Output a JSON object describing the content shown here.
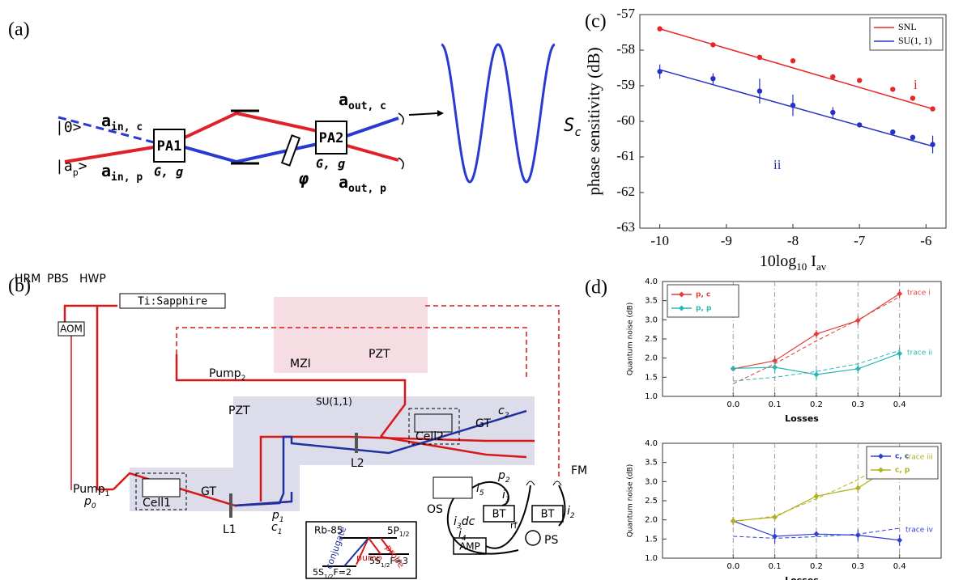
{
  "panel_labels": [
    "(a)",
    "(b)",
    "(c)",
    "(d)"
  ],
  "diagram_a": {
    "vacuum": "|0>",
    "probe": [
      {
        "text": "|a"
      },
      {
        "text": "p",
        "sub": true
      },
      {
        "text": ">"
      }
    ],
    "a_in_c": [
      {
        "text": "a"
      },
      {
        "text": "in, c",
        "sub": true
      }
    ],
    "a_in_p": [
      {
        "text": "a"
      },
      {
        "text": "in, p",
        "sub": true
      }
    ],
    "pa1": "PA1",
    "pa1_gain": "G, g",
    "pa2": "PA2",
    "pa2_gain": "G, g",
    "phase": "φ",
    "a_out_c": [
      {
        "text": "a"
      },
      {
        "text": "out, c",
        "sub": true
      }
    ],
    "a_out_p": [
      {
        "text": "a"
      },
      {
        "text": "out, p",
        "sub": true
      }
    ],
    "signal": [
      {
        "text": "S"
      },
      {
        "text": "c",
        "sub": true
      }
    ]
  },
  "diagram_b": {
    "hrm": "HRM",
    "pbs": "PBS",
    "hwp": "HWP",
    "laser": "Ti:Sapphire",
    "aom": "AOM",
    "mzi": "MZI",
    "pzt_top": "PZT",
    "pump2": [
      {
        "text": "Pump"
      },
      {
        "text": "2",
        "sub": true
      }
    ],
    "pzt": "PZT",
    "su11": "SU(1,1)",
    "gt2": "GT",
    "c2": [
      {
        "text": "c"
      },
      {
        "text": "2",
        "sub": true
      }
    ],
    "p2": [
      {
        "text": "p"
      },
      {
        "text": "2",
        "sub": true
      }
    ],
    "cell2": "Cell2",
    "l2": "L2",
    "fm": "FM",
    "pump1": [
      {
        "text": "Pump"
      },
      {
        "text": "1",
        "sub": true
      }
    ],
    "gt1": "GT",
    "p1": [
      {
        "text": "p"
      },
      {
        "text": "1",
        "sub": true
      }
    ],
    "cell1": "Cell1",
    "l1": "L1",
    "c1": [
      {
        "text": "c"
      },
      {
        "text": "1",
        "sub": true
      }
    ],
    "p0": [
      {
        "text": "p"
      },
      {
        "text": "0",
        "sub": true
      }
    ],
    "rb": "Rb-85",
    "p_level": [
      {
        "text": "5P"
      },
      {
        "text": "1/2",
        "sub": true
      }
    ],
    "probe": "probe",
    "pump": "pump",
    "conjugate": "conjugate",
    "s_level_2": [
      {
        "text": "5S"
      },
      {
        "text": "1/2",
        "sub": true
      },
      {
        "text": "F=2"
      }
    ],
    "s_level_3": [
      {
        "text": "5S"
      },
      {
        "text": "1/2",
        "sub": true
      },
      {
        "text": "F=3"
      }
    ],
    "os": "OS",
    "i3": [
      {
        "text": "i"
      },
      {
        "text": "3",
        "sub": true
      },
      {
        "text": "dc"
      }
    ],
    "i5": [
      {
        "text": "i"
      },
      {
        "text": "5",
        "sub": true
      }
    ],
    "i1": [
      {
        "text": "i"
      },
      {
        "text": "1",
        "sub": true
      }
    ],
    "i2": [
      {
        "text": "i"
      },
      {
        "text": "2",
        "sub": true
      }
    ],
    "i4": [
      {
        "text": "i"
      },
      {
        "text": "4",
        "sub": true
      }
    ],
    "bt1": "BT",
    "bt2": "BT",
    "rf": "rf",
    "ps": "PS",
    "amp": "AMP"
  },
  "chart_data": [
    {
      "type": "scatter",
      "xlabel": [
        {
          "text": "10log"
        },
        {
          "text": "10",
          "sub": true
        },
        {
          "text": " I"
        },
        {
          "text": "av",
          "sub": true
        }
      ],
      "ylabel": "phase sensitivity (dB)",
      "xlim": [
        -10.3,
        -5.7
      ],
      "ylim": [
        -63,
        -57
      ],
      "xticks": [
        -10,
        -9,
        -8,
        -7,
        -6
      ],
      "yticks": [
        -63,
        -62,
        -61,
        -60,
        -59,
        -58,
        -57
      ],
      "legend": "upper right",
      "x": [
        -10,
        -9.2,
        -8.5,
        -8,
        -7.4,
        -7,
        -6.5,
        -6.2,
        -5.9
      ],
      "series": [
        {
          "name": "SNL",
          "color": "#e8262a",
          "values": [
            -57.4,
            -57.85,
            -58.2,
            -58.3,
            -58.75,
            -58.85,
            -59.1,
            -59.35,
            -59.65
          ],
          "fit_x": [
            -10,
            -5.9
          ],
          "fit_values": [
            -57.4,
            -59.65
          ]
        },
        {
          "name": "SU(1, 1)",
          "color": "#2431c4",
          "values": [
            -58.6,
            -58.8,
            -59.15,
            -59.55,
            -59.75,
            -60.1,
            -60.3,
            -60.45,
            -60.65
          ],
          "errors": [
            0.2,
            0.15,
            0.35,
            0.3,
            0.15,
            0.05,
            0.05,
            0.07,
            0.25
          ],
          "fit_x": [
            -10,
            -5.9
          ],
          "fit_values": [
            -58.55,
            -60.7
          ]
        }
      ],
      "annotations": [
        "i",
        "ii"
      ]
    },
    {
      "type": "line",
      "xlabel": "Losses",
      "ylabel": "Quantum noise (dB)",
      "xlim": [
        -0.17,
        0.5
      ],
      "ylim": [
        1.0,
        4.0
      ],
      "xticks": [
        {
          "value": 0,
          "label": "0.0"
        },
        0.1,
        0.2,
        0.3,
        0.4
      ],
      "yticks": [
        {
          "value": 1,
          "label": "1.0"
        },
        1.5,
        {
          "value": 2,
          "label": "2.0"
        },
        2.5,
        {
          "value": 3,
          "label": "3.0"
        },
        3.5,
        {
          "value": 4,
          "label": "4.0"
        }
      ],
      "grid": "x",
      "legend": "upper left",
      "x": [
        0,
        0.1,
        0.2,
        0.3,
        0.4
      ],
      "series": [
        {
          "name": "p, c",
          "color": "#e0403a",
          "values": [
            1.72,
            1.93,
            2.63,
            2.98,
            3.68
          ],
          "errors": [
            0.05,
            0.12,
            0.1,
            0.12,
            0.12
          ],
          "theory": [
            1.33,
            1.85,
            2.45,
            3.0,
            3.6
          ]
        },
        {
          "name": "p, p",
          "color": "#2bb5b5",
          "values": [
            1.73,
            1.76,
            1.57,
            1.72,
            2.12
          ],
          "errors": [
            0.05,
            0.15,
            0.12,
            0.12,
            0.15
          ],
          "theory": [
            1.4,
            1.5,
            1.65,
            1.85,
            2.2
          ]
        }
      ],
      "annotations": [
        "trace i",
        "trace ii"
      ]
    },
    {
      "type": "line",
      "xlabel": "Losses",
      "ylabel": "Quantum noise (dB)",
      "xlim": [
        -0.17,
        0.5
      ],
      "ylim": [
        1.0,
        4.0
      ],
      "xticks": [
        {
          "value": 0,
          "label": "0.0"
        },
        0.1,
        0.2,
        0.3,
        0.4
      ],
      "yticks": [
        {
          "value": 1,
          "label": "1.0"
        },
        1.5,
        {
          "value": 2,
          "label": "2.0"
        },
        2.5,
        {
          "value": 3,
          "label": "3.0"
        },
        3.5,
        {
          "value": 4,
          "label": "4.0"
        }
      ],
      "grid": "x",
      "legend": "upper right",
      "x": [
        0,
        0.1,
        0.2,
        0.3,
        0.4
      ],
      "series": [
        {
          "name": "c, c",
          "color": "#3040d0",
          "values": [
            1.97,
            1.57,
            1.63,
            1.6,
            1.47
          ],
          "errors": [
            0.1,
            0.2,
            0.07,
            0.15,
            0.15
          ],
          "theory": [
            1.57,
            1.52,
            1.56,
            1.63,
            1.78
          ]
        },
        {
          "name": "c, p",
          "color": "#b0b020",
          "values": [
            1.97,
            2.07,
            2.62,
            2.83,
            3.53
          ],
          "errors": [
            0.1,
            0.07,
            0.12,
            0.12,
            0.12
          ],
          "theory": [
            1.95,
            2.1,
            2.55,
            3.05,
            3.7
          ]
        }
      ],
      "annotations": [
        "trace iii",
        "trace iv"
      ]
    }
  ]
}
